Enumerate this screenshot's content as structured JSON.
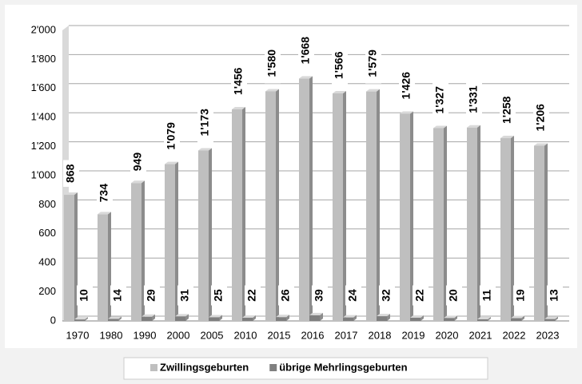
{
  "chart_data": {
    "type": "bar",
    "categories": [
      "1970",
      "1980",
      "1990",
      "2000",
      "2005",
      "2010",
      "2015",
      "2016",
      "2017",
      "2018",
      "2019",
      "2020",
      "2021",
      "2022",
      "2023"
    ],
    "series": [
      {
        "name": "Zwillingsgeburten",
        "color": "#bfbfbf",
        "values": [
          868,
          734,
          949,
          1079,
          1173,
          1456,
          1580,
          1668,
          1566,
          1579,
          1426,
          1327,
          1331,
          1258,
          1206
        ],
        "value_labels": [
          "868",
          "734",
          "949",
          "1'079",
          "1'173",
          "1'456",
          "1'580",
          "1'668",
          "1'566",
          "1'579",
          "1'426",
          "1'327",
          "1'331",
          "1'258",
          "1'206"
        ]
      },
      {
        "name": "übrige Mehrlingsgeburten",
        "color": "#7f7f7f",
        "values": [
          10,
          14,
          29,
          31,
          25,
          22,
          26,
          39,
          24,
          32,
          22,
          20,
          11,
          19,
          13
        ]
      }
    ],
    "ylim": [
      0,
      2000
    ],
    "yticks": [
      0,
      200,
      400,
      600,
      800,
      {
        "value": 1000,
        "label": "1'000"
      },
      {
        "value": 1200,
        "label": "1'200"
      },
      {
        "value": 1400,
        "label": "1'400"
      },
      {
        "value": 1600,
        "label": "1'600"
      },
      {
        "value": 1800,
        "label": "1'800"
      },
      {
        "value": 2000,
        "label": "2'000"
      }
    ],
    "grid": true
  }
}
